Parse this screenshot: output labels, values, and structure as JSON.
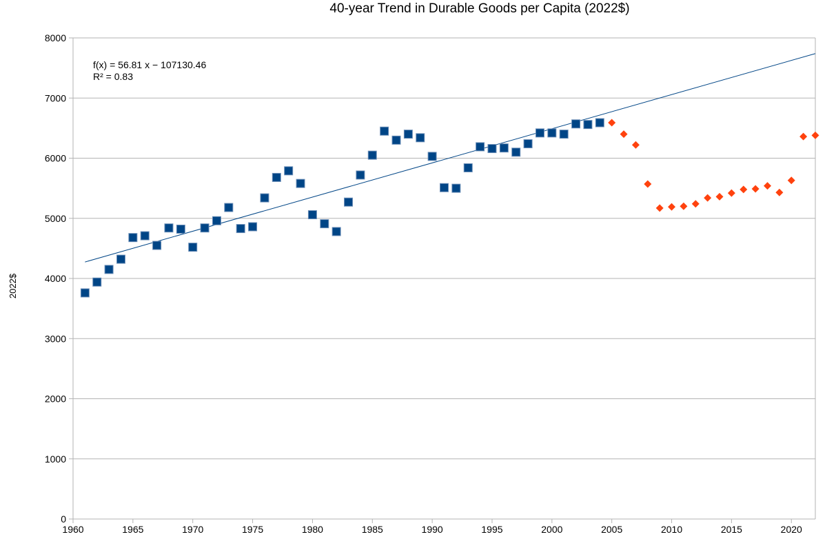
{
  "chart_data": {
    "type": "scatter",
    "title": "40-year Trend in Durable Goods per Capita (2022$)",
    "xlabel": "",
    "ylabel": "2022$",
    "xlim": [
      1960,
      2022
    ],
    "ylim": [
      0,
      8000
    ],
    "x_ticks": [
      1960,
      1965,
      1970,
      1975,
      1980,
      1985,
      1990,
      1995,
      2000,
      2005,
      2010,
      2015,
      2020
    ],
    "y_ticks": [
      0,
      1000,
      2000,
      3000,
      4000,
      5000,
      6000,
      7000,
      8000
    ],
    "grid": "horizontal",
    "legend": "none",
    "series": [
      {
        "marker": "square",
        "color": "#004586",
        "points": [
          [
            1961,
            3760
          ],
          [
            1962,
            3940
          ],
          [
            1963,
            4150
          ],
          [
            1964,
            4320
          ],
          [
            1965,
            4680
          ],
          [
            1966,
            4710
          ],
          [
            1967,
            4550
          ],
          [
            1968,
            4840
          ],
          [
            1969,
            4820
          ],
          [
            1970,
            4520
          ],
          [
            1971,
            4840
          ],
          [
            1972,
            4960
          ],
          [
            1973,
            5180
          ],
          [
            1974,
            4830
          ],
          [
            1975,
            4860
          ],
          [
            1976,
            5340
          ],
          [
            1977,
            5680
          ],
          [
            1978,
            5790
          ],
          [
            1979,
            5580
          ],
          [
            1980,
            5060
          ],
          [
            1981,
            4910
          ],
          [
            1982,
            4780
          ],
          [
            1983,
            5270
          ],
          [
            1984,
            5720
          ],
          [
            1985,
            6050
          ],
          [
            1986,
            6450
          ],
          [
            1987,
            6300
          ],
          [
            1988,
            6400
          ],
          [
            1989,
            6340
          ],
          [
            1990,
            6030
          ],
          [
            1991,
            5510
          ],
          [
            1992,
            5500
          ],
          [
            1993,
            5840
          ],
          [
            1994,
            6190
          ],
          [
            1995,
            6160
          ],
          [
            1996,
            6170
          ],
          [
            1997,
            6100
          ],
          [
            1998,
            6240
          ],
          [
            1999,
            6420
          ],
          [
            2000,
            6420
          ],
          [
            2001,
            6400
          ],
          [
            2002,
            6570
          ],
          [
            2003,
            6560
          ],
          [
            2004,
            6590
          ]
        ]
      },
      {
        "marker": "diamond",
        "color": "#ff420e",
        "points": [
          [
            2005,
            6590
          ],
          [
            2006,
            6400
          ],
          [
            2007,
            6220
          ],
          [
            2008,
            5570
          ],
          [
            2009,
            5170
          ],
          [
            2010,
            5190
          ],
          [
            2011,
            5200
          ],
          [
            2012,
            5240
          ],
          [
            2013,
            5340
          ],
          [
            2014,
            5360
          ],
          [
            2015,
            5420
          ],
          [
            2016,
            5480
          ],
          [
            2017,
            5490
          ],
          [
            2018,
            5540
          ],
          [
            2019,
            5430
          ],
          [
            2020,
            5630
          ],
          [
            2021,
            6360
          ],
          [
            2022,
            6380
          ]
        ]
      }
    ],
    "trendline": {
      "color": "#004586",
      "slope": 56.81,
      "intercept": -107130.46,
      "x_range": [
        1961,
        2022
      ],
      "equation_text": "f(x) = 56.81 x − 107130.46",
      "r2_text": "R² = 0.83"
    }
  }
}
